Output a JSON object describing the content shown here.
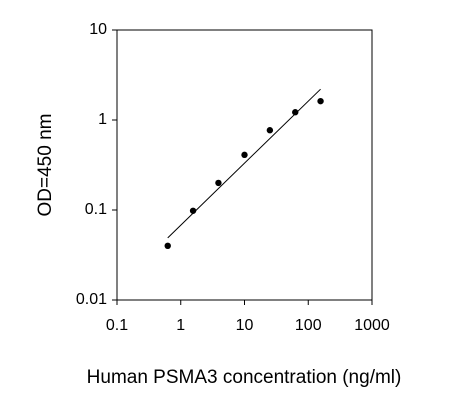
{
  "chart_data": {
    "type": "scatter",
    "x_label": "Human PSMA3 concentration (ng/ml)",
    "y_label": "OD=450 nm",
    "xscale": "log",
    "yscale": "log",
    "xlim": [
      0.1,
      1000
    ],
    "xticks": [
      0.1,
      1,
      10,
      100,
      1000
    ],
    "ylim": [
      0.01,
      10
    ],
    "yticks": [
      0.01,
      0.1,
      1,
      10
    ],
    "grid": false,
    "series": [
      {
        "style": "markers",
        "color": "#000000",
        "x": [
          0.625,
          1.56,
          3.9,
          10,
          25,
          62.5,
          156
        ],
        "values": [
          0.04,
          0.098,
          0.2,
          0.41,
          0.77,
          1.22,
          1.62
        ]
      },
      {
        "style": "line",
        "color": "#000000",
        "x": [
          0.625,
          156
        ],
        "values": [
          0.049,
          2.2
        ]
      }
    ]
  }
}
